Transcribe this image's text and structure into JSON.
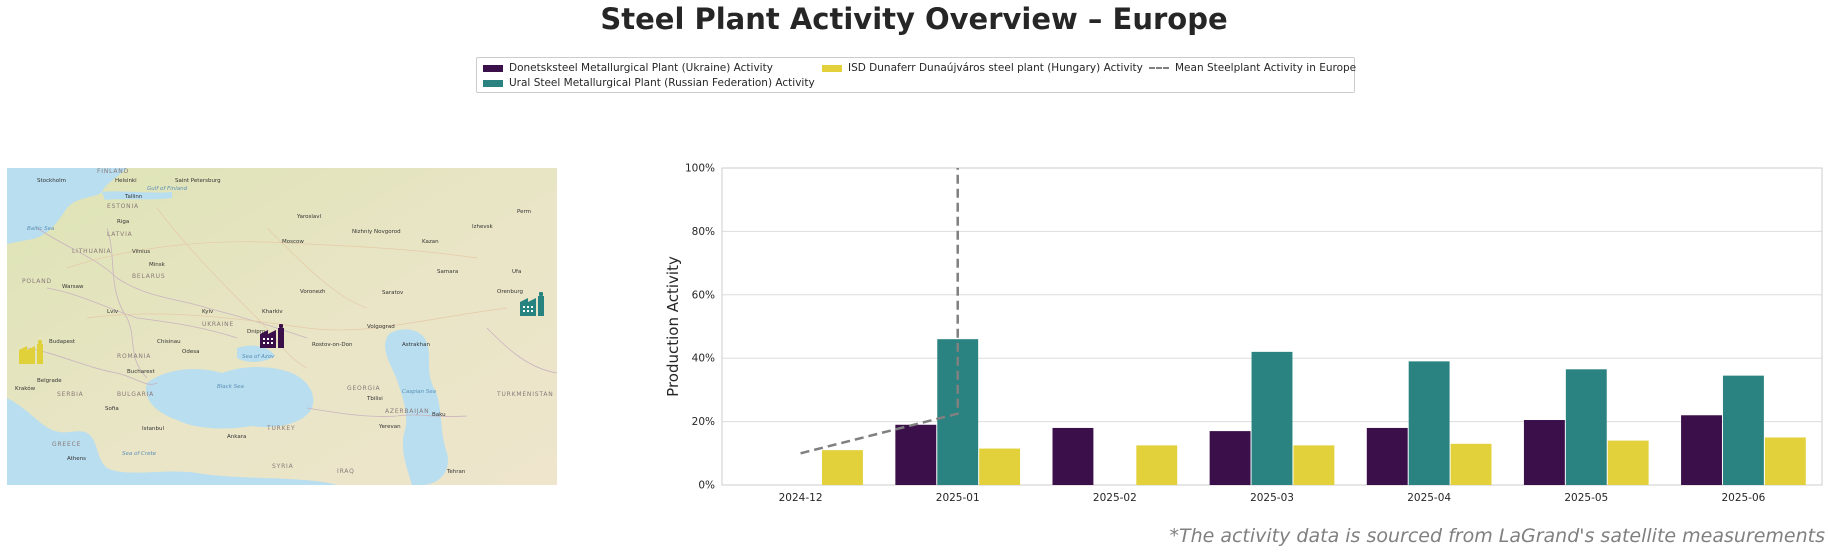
{
  "page": {
    "title": "Steel Plant Activity Overview – Europe",
    "footnote": "*The activity data is sourced from LaGrand's satellite measurements"
  },
  "map": {
    "labels": [
      "Kraków",
      "Warsaw",
      "Minsk",
      "Vilnius",
      "Riga",
      "Tallinn",
      "Helsinki",
      "Stockholm",
      "Saint Petersburg",
      "Moscow",
      "Yaroslavl",
      "Nizhniy Novgorod",
      "Kazan",
      "Izhevsk",
      "Perm",
      "Ufa",
      "Samara",
      "Saratov",
      "Voronezh",
      "Kharkiv",
      "Kyiv",
      "Lviv",
      "Dnipro",
      "Rostov-on-Don",
      "Volgograd",
      "Odesa",
      "Chisinau",
      "Budapest",
      "Belgrade",
      "Bucharest",
      "Sofia",
      "Istanbul",
      "Ankara",
      "Athens",
      "Tbilisi",
      "Baku",
      "Yerevan",
      "Tehran",
      "Astrakhan",
      "Orenburg",
      "UKRAINE",
      "BELARUS",
      "POLAND",
      "ROMANIA",
      "BULGARIA",
      "TURKEY",
      "GREECE",
      "SERBIA",
      "LITHUANIA",
      "LATVIA",
      "ESTONIA",
      "FINLAND",
      "SYRIA",
      "IRAQ",
      "TURKMENISTAN",
      "GEORGIA",
      "AZERBAIJAN",
      "Black Sea",
      "Caspian Sea",
      "Gulf of Finland",
      "Sea of Azov",
      "Sea of Crete",
      "Baltic Sea"
    ],
    "markers": [
      {
        "plant": "Donetsksteel Metallurgical Plant (Ukraine)",
        "color": "#3b0f4a"
      },
      {
        "plant": "Ural Steel Metallurgical Plant (Russian Federation)",
        "color": "#26837f"
      },
      {
        "plant": "ISD Dunaferr Dunaújváros steel plant (Hungary)",
        "color": "#e0d03a"
      }
    ]
  },
  "chart_data": {
    "type": "bar",
    "title": "",
    "xlabel": "",
    "ylabel": "Production Activity",
    "ylim": [
      0,
      100
    ],
    "yticks": [
      "0%",
      "20%",
      "40%",
      "60%",
      "80%",
      "100%"
    ],
    "grid": true,
    "legend_position": "top-center",
    "categories": [
      "2024-12",
      "2025-01",
      "2025-02",
      "2025-03",
      "2025-04",
      "2025-05",
      "2025-06"
    ],
    "series": [
      {
        "name": "Donetsksteel Metallurgical Plant (Ukraine) Activity",
        "color": "#3b0f4a",
        "values": [
          null,
          19,
          18,
          17,
          18,
          20.5,
          22
        ]
      },
      {
        "name": "Ural Steel Metallurgical Plant (Russian Federation) Activity",
        "color": "#2a8380",
        "values": [
          null,
          46,
          null,
          42,
          39,
          36.5,
          34.5
        ]
      },
      {
        "name": "ISD Dunaferr Dunaújváros steel plant (Hungary) Activity",
        "color": "#e3d13c",
        "values": [
          11,
          11.5,
          12.5,
          12.5,
          13,
          14,
          15
        ]
      }
    ],
    "mean_line": {
      "name": "Mean Steelplant Activity in Europe",
      "color": "#808080",
      "points": [
        [
          "2024-12",
          10
        ],
        [
          "2025-01",
          22.5
        ],
        [
          "2025-01",
          100
        ]
      ]
    }
  }
}
